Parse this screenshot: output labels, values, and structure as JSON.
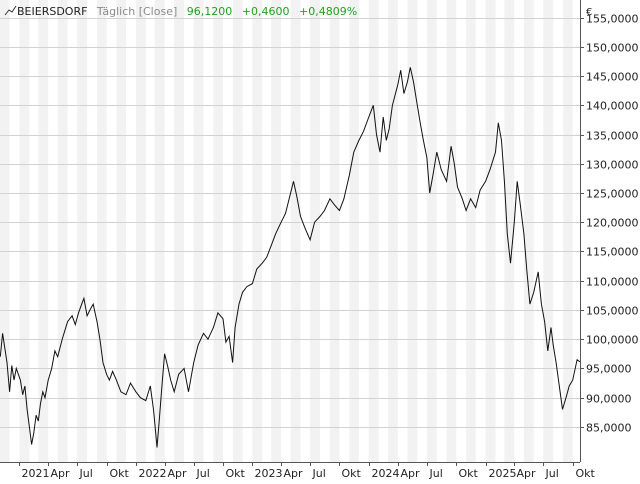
{
  "header": {
    "name": "BEIERSDORF",
    "mode": "Täglich [Close]",
    "last": "96,1200",
    "change": "+0,4600",
    "change_pct": "+0,4809%"
  },
  "currency": "€",
  "colors": {
    "up": "#21a121",
    "band": "#f2f2f2",
    "grid": "#d2d2d2",
    "line": "#111111",
    "axis_text": "#222222",
    "header_text": "#8a8a8a"
  },
  "chart_data": {
    "type": "line",
    "title": "BEIERSDORF",
    "xlabel": "",
    "ylabel": "",
    "x_range": [
      "2020-11-01",
      "2025-10-24"
    ],
    "ylim": [
      79,
      158
    ],
    "y_ticks": [
      85,
      90,
      95,
      100,
      105,
      110,
      115,
      120,
      125,
      130,
      135,
      140,
      145,
      150,
      155
    ],
    "y_tick_labels": [
      "85,0000",
      "90,0000",
      "95,0000",
      "100,0000",
      "105,0000",
      "110,0000",
      "115,0000",
      "120,0000",
      "125,0000",
      "130,0000",
      "135,0000",
      "140,0000",
      "145,0000",
      "150,0000",
      "155,0000"
    ],
    "x_ticks": [
      {
        "label": "2021",
        "date": "2021-01-01"
      },
      {
        "label": "Apr",
        "date": "2021-04-01"
      },
      {
        "label": "Jul",
        "date": "2021-07-01"
      },
      {
        "label": "Okt",
        "date": "2021-10-01"
      },
      {
        "label": "2022",
        "date": "2022-01-01"
      },
      {
        "label": "Apr",
        "date": "2022-04-01"
      },
      {
        "label": "Jul",
        "date": "2022-07-01"
      },
      {
        "label": "Okt",
        "date": "2022-10-01"
      },
      {
        "label": "2023",
        "date": "2023-01-01"
      },
      {
        "label": "Apr",
        "date": "2023-04-01"
      },
      {
        "label": "Jul",
        "date": "2023-07-01"
      },
      {
        "label": "Okt",
        "date": "2023-10-01"
      },
      {
        "label": "2024",
        "date": "2024-01-01"
      },
      {
        "label": "Apr",
        "date": "2024-04-01"
      },
      {
        "label": "Jul",
        "date": "2024-07-01"
      },
      {
        "label": "Okt",
        "date": "2024-10-01"
      },
      {
        "label": "2025",
        "date": "2025-01-01"
      },
      {
        "label": "Apr",
        "date": "2025-04-01"
      },
      {
        "label": "Jul",
        "date": "2025-07-01"
      },
      {
        "label": "Okt",
        "date": "2025-10-01"
      }
    ],
    "grid": true,
    "legend": "none",
    "series": [
      {
        "name": "BEIERSDORF",
        "points": [
          [
            "2020-11-02",
            97.0
          ],
          [
            "2020-11-09",
            101.0
          ],
          [
            "2020-11-16",
            98.5
          ],
          [
            "2020-11-23",
            96.0
          ],
          [
            "2020-12-01",
            91.0
          ],
          [
            "2020-12-08",
            95.5
          ],
          [
            "2020-12-15",
            93.0
          ],
          [
            "2020-12-22",
            95.0
          ],
          [
            "2021-01-04",
            93.0
          ],
          [
            "2021-01-11",
            90.5
          ],
          [
            "2021-01-18",
            92.0
          ],
          [
            "2021-01-25",
            88.0
          ],
          [
            "2021-02-01",
            85.0
          ],
          [
            "2021-02-08",
            82.0
          ],
          [
            "2021-02-15",
            84.0
          ],
          [
            "2021-02-22",
            87.0
          ],
          [
            "2021-03-01",
            86.0
          ],
          [
            "2021-03-08",
            89.0
          ],
          [
            "2021-03-15",
            91.0
          ],
          [
            "2021-03-22",
            90.0
          ],
          [
            "2021-04-01",
            93.0
          ],
          [
            "2021-04-12",
            95.0
          ],
          [
            "2021-04-22",
            98.0
          ],
          [
            "2021-05-01",
            97.0
          ],
          [
            "2021-05-15",
            100.0
          ],
          [
            "2021-06-01",
            103.0
          ],
          [
            "2021-06-15",
            104.0
          ],
          [
            "2021-06-25",
            102.5
          ],
          [
            "2021-07-05",
            104.5
          ],
          [
            "2021-07-15",
            106.0
          ],
          [
            "2021-07-22",
            107.0
          ],
          [
            "2021-08-01",
            104.0
          ],
          [
            "2021-08-10",
            105.0
          ],
          [
            "2021-08-20",
            106.0
          ],
          [
            "2021-09-01",
            103.0
          ],
          [
            "2021-09-10",
            100.0
          ],
          [
            "2021-09-20",
            96.0
          ],
          [
            "2021-10-01",
            94.0
          ],
          [
            "2021-10-10",
            93.0
          ],
          [
            "2021-10-20",
            94.5
          ],
          [
            "2021-11-01",
            93.0
          ],
          [
            "2021-11-15",
            91.0
          ],
          [
            "2021-12-01",
            90.5
          ],
          [
            "2021-12-15",
            92.5
          ],
          [
            "2022-01-01",
            91.0
          ],
          [
            "2022-01-15",
            90.0
          ],
          [
            "2022-02-01",
            89.5
          ],
          [
            "2022-02-15",
            92.0
          ],
          [
            "2022-02-25",
            88.0
          ],
          [
            "2022-03-03",
            84.5
          ],
          [
            "2022-03-08",
            81.5
          ],
          [
            "2022-03-15",
            86.0
          ],
          [
            "2022-03-25",
            93.0
          ],
          [
            "2022-04-01",
            97.5
          ],
          [
            "2022-04-10",
            95.5
          ],
          [
            "2022-04-20",
            93.0
          ],
          [
            "2022-05-01",
            91.0
          ],
          [
            "2022-05-15",
            94.0
          ],
          [
            "2022-06-01",
            95.0
          ],
          [
            "2022-06-15",
            91.0
          ],
          [
            "2022-07-01",
            96.0
          ],
          [
            "2022-07-15",
            99.0
          ],
          [
            "2022-08-01",
            101.0
          ],
          [
            "2022-08-15",
            100.0
          ],
          [
            "2022-09-01",
            102.0
          ],
          [
            "2022-09-15",
            104.5
          ],
          [
            "2022-10-01",
            103.5
          ],
          [
            "2022-10-10",
            99.5
          ],
          [
            "2022-10-20",
            100.5
          ],
          [
            "2022-10-31",
            96.0
          ],
          [
            "2022-11-08",
            102.0
          ],
          [
            "2022-11-20",
            106.0
          ],
          [
            "2022-12-01",
            108.0
          ],
          [
            "2022-12-15",
            109.0
          ],
          [
            "2023-01-01",
            109.5
          ],
          [
            "2023-01-15",
            112.0
          ],
          [
            "2023-02-01",
            113.0
          ],
          [
            "2023-02-15",
            114.0
          ],
          [
            "2023-03-01",
            116.0
          ],
          [
            "2023-03-15",
            118.0
          ],
          [
            "2023-04-01",
            120.0
          ],
          [
            "2023-04-15",
            121.5
          ],
          [
            "2023-05-01",
            125.0
          ],
          [
            "2023-05-10",
            127.0
          ],
          [
            "2023-05-20",
            124.5
          ],
          [
            "2023-06-01",
            121.0
          ],
          [
            "2023-06-15",
            119.0
          ],
          [
            "2023-07-01",
            117.0
          ],
          [
            "2023-07-15",
            120.0
          ],
          [
            "2023-08-01",
            121.0
          ],
          [
            "2023-08-15",
            122.0
          ],
          [
            "2023-09-01",
            124.0
          ],
          [
            "2023-09-15",
            123.0
          ],
          [
            "2023-10-01",
            122.0
          ],
          [
            "2023-10-15",
            124.0
          ],
          [
            "2023-11-01",
            128.0
          ],
          [
            "2023-11-15",
            132.0
          ],
          [
            "2023-12-01",
            134.0
          ],
          [
            "2023-12-15",
            135.5
          ],
          [
            "2024-01-01",
            138.0
          ],
          [
            "2024-01-15",
            140.0
          ],
          [
            "2024-01-25",
            135.0
          ],
          [
            "2024-02-05",
            132.0
          ],
          [
            "2024-02-15",
            138.0
          ],
          [
            "2024-02-25",
            134.0
          ],
          [
            "2024-03-05",
            136.0
          ],
          [
            "2024-03-15",
            140.0
          ],
          [
            "2024-04-01",
            143.5
          ],
          [
            "2024-04-10",
            146.0
          ],
          [
            "2024-04-20",
            142.0
          ],
          [
            "2024-05-01",
            144.0
          ],
          [
            "2024-05-10",
            146.5
          ],
          [
            "2024-05-20",
            144.0
          ],
          [
            "2024-06-01",
            140.0
          ],
          [
            "2024-06-10",
            137.0
          ],
          [
            "2024-06-20",
            134.0
          ],
          [
            "2024-07-01",
            131.0
          ],
          [
            "2024-07-10",
            125.0
          ],
          [
            "2024-07-20",
            128.0
          ],
          [
            "2024-08-01",
            132.0
          ],
          [
            "2024-08-15",
            129.0
          ],
          [
            "2024-09-01",
            127.0
          ],
          [
            "2024-09-15",
            133.0
          ],
          [
            "2024-09-25",
            130.0
          ],
          [
            "2024-10-05",
            126.0
          ],
          [
            "2024-10-20",
            124.0
          ],
          [
            "2024-11-01",
            122.0
          ],
          [
            "2024-11-15",
            124.0
          ],
          [
            "2024-12-01",
            122.5
          ],
          [
            "2024-12-15",
            125.5
          ],
          [
            "2025-01-01",
            127.0
          ],
          [
            "2025-01-15",
            129.0
          ],
          [
            "2025-02-01",
            132.0
          ],
          [
            "2025-02-10",
            137.0
          ],
          [
            "2025-02-20",
            134.0
          ],
          [
            "2025-03-01",
            127.0
          ],
          [
            "2025-03-10",
            118.0
          ],
          [
            "2025-03-20",
            113.0
          ],
          [
            "2025-04-01",
            120.0
          ],
          [
            "2025-04-10",
            127.0
          ],
          [
            "2025-04-20",
            123.0
          ],
          [
            "2025-05-01",
            118.0
          ],
          [
            "2025-05-10",
            112.0
          ],
          [
            "2025-05-20",
            106.0
          ],
          [
            "2025-06-01",
            108.0
          ],
          [
            "2025-06-15",
            111.5
          ],
          [
            "2025-06-25",
            106.0
          ],
          [
            "2025-07-05",
            103.0
          ],
          [
            "2025-07-15",
            98.0
          ],
          [
            "2025-07-25",
            102.0
          ],
          [
            "2025-08-01",
            99.0
          ],
          [
            "2025-08-10",
            96.0
          ],
          [
            "2025-08-20",
            92.0
          ],
          [
            "2025-08-30",
            88.0
          ],
          [
            "2025-09-10",
            90.0
          ],
          [
            "2025-09-20",
            92.0
          ],
          [
            "2025-10-01",
            93.0
          ],
          [
            "2025-10-15",
            96.5
          ],
          [
            "2025-10-24",
            96.12
          ]
        ]
      }
    ]
  }
}
